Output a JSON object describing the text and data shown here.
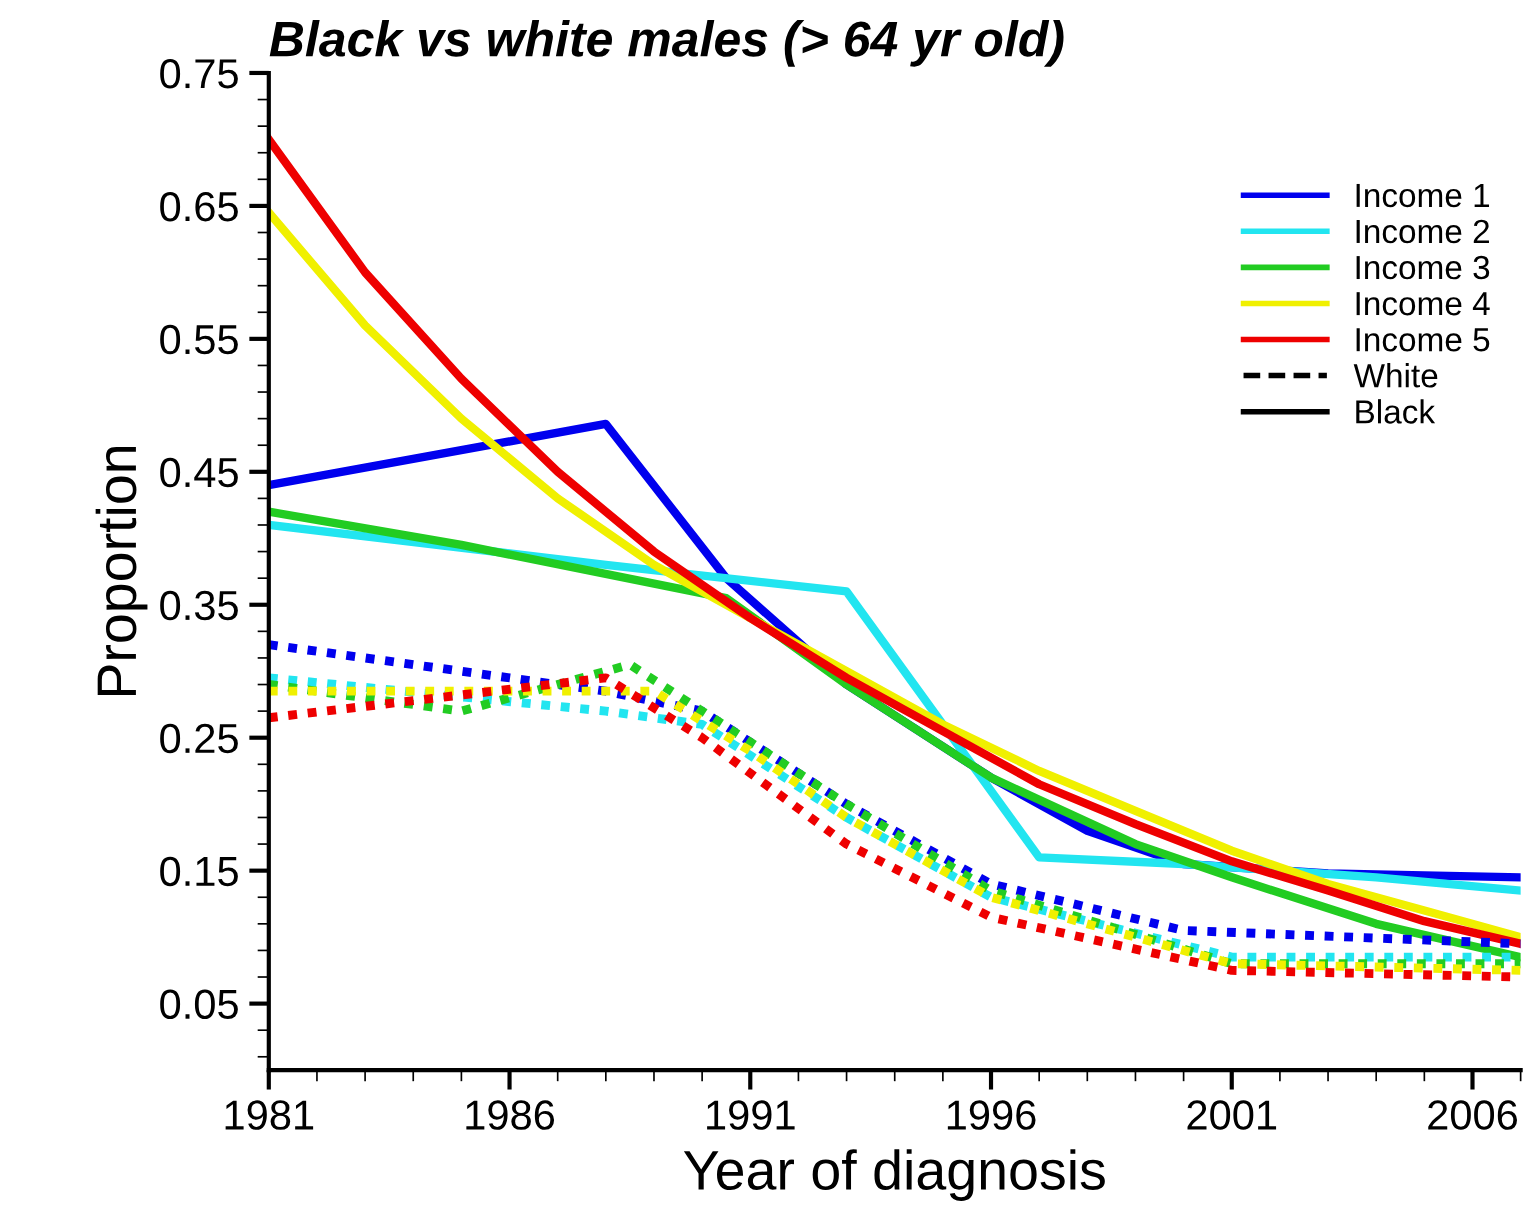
{
  "chart_data": {
    "type": "line",
    "title": "Black vs white males (> 64 yr old)",
    "xlabel": "Year of diagnosis",
    "ylabel": "Proportion",
    "xlim": [
      1981,
      2007
    ],
    "xticks": [
      1981,
      1986,
      1991,
      1996,
      2001,
      2006
    ],
    "ylim": [
      0.0,
      0.75
    ],
    "yticks": [
      0.05,
      0.15,
      0.25,
      0.35,
      0.45,
      0.55,
      0.65,
      0.75
    ],
    "legend": "top right",
    "grid": false,
    "marker": "none",
    "series": [
      {
        "name": "Income 1",
        "color": "#0000ee",
        "line_style": "solid",
        "x": [
          1981,
          1988,
          1990.5,
          1993,
          1996,
          1998,
          2000,
          2003,
          2007
        ],
        "values": [
          0.44,
          0.486,
          0.37,
          0.29,
          0.22,
          0.18,
          0.155,
          0.148,
          0.145
        ]
      },
      {
        "name": "Income 2",
        "color": "#22e5f0",
        "line_style": "solid",
        "x": [
          1981,
          1988,
          1993,
          1997,
          2000,
          2004,
          2007
        ],
        "values": [
          0.41,
          0.38,
          0.36,
          0.16,
          0.155,
          0.145,
          0.135
        ]
      },
      {
        "name": "Income 3",
        "color": "#22cc22",
        "line_style": "solid",
        "x": [
          1981,
          1985,
          1990.5,
          1993,
          1996,
          1999,
          2001,
          2004,
          2007
        ],
        "values": [
          0.42,
          0.395,
          0.355,
          0.29,
          0.22,
          0.17,
          0.145,
          0.11,
          0.085
        ]
      },
      {
        "name": "Income 4",
        "color": "#f0f000",
        "line_style": "solid",
        "x": [
          1981,
          1983,
          1985,
          1987,
          1989,
          1991,
          1993,
          1995,
          1997,
          1999,
          2001,
          2003,
          2005,
          2007
        ],
        "values": [
          0.645,
          0.56,
          0.49,
          0.43,
          0.38,
          0.34,
          0.3,
          0.26,
          0.225,
          0.195,
          0.165,
          0.14,
          0.12,
          0.1
        ]
      },
      {
        "name": "Income 5",
        "color": "#ee0000",
        "line_style": "solid",
        "x": [
          1981,
          1983,
          1985,
          1987,
          1989,
          1991,
          1993,
          1995,
          1997,
          1999,
          2001,
          2003,
          2005,
          2007
        ],
        "values": [
          0.7,
          0.6,
          0.52,
          0.45,
          0.39,
          0.34,
          0.295,
          0.255,
          0.215,
          0.185,
          0.157,
          0.135,
          0.112,
          0.095
        ]
      },
      {
        "color": "#0000ee",
        "line_style": "dotted",
        "x": [
          1981,
          1988,
          1990,
          1993,
          1996,
          2000,
          2007
        ],
        "values": [
          0.32,
          0.285,
          0.27,
          0.2,
          0.14,
          0.105,
          0.095
        ]
      },
      {
        "color": "#22e5f0",
        "line_style": "dotted",
        "x": [
          1981,
          1988,
          1990,
          1993,
          1996,
          2001,
          2007
        ],
        "values": [
          0.295,
          0.27,
          0.26,
          0.19,
          0.13,
          0.085,
          0.085
        ]
      },
      {
        "color": "#22cc22",
        "line_style": "dotted",
        "x": [
          1981,
          1985,
          1988.5,
          1990,
          1993,
          1996,
          2001,
          2007
        ],
        "values": [
          0.29,
          0.27,
          0.305,
          0.27,
          0.2,
          0.135,
          0.08,
          0.08
        ]
      },
      {
        "color": "#f0f000",
        "line_style": "dotted",
        "x": [
          1981,
          1989,
          1991,
          1993,
          1996,
          2001,
          2007
        ],
        "values": [
          0.285,
          0.285,
          0.24,
          0.19,
          0.13,
          0.08,
          0.075
        ]
      },
      {
        "color": "#ee0000",
        "line_style": "dotted",
        "x": [
          1981,
          1988,
          1990,
          1993,
          1996,
          2001,
          2007
        ],
        "values": [
          0.265,
          0.295,
          0.25,
          0.17,
          0.115,
          0.075,
          0.07
        ]
      },
      {
        "name": "White",
        "color": "#000000",
        "line_style": "dashed"
      },
      {
        "name": "Black",
        "color": "#000000",
        "line_style": "solid"
      }
    ]
  }
}
